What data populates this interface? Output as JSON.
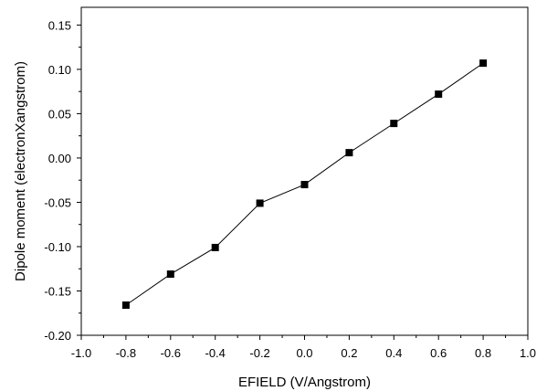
{
  "chart_data": {
    "type": "line",
    "title": "",
    "xlabel": "EFIELD (V/Angstrom)",
    "ylabel": "Dipole moment (electronXangstrom)",
    "xlim": [
      -1.0,
      1.0
    ],
    "ylim": [
      -0.2,
      0.17
    ],
    "x_ticks": [
      -1.0,
      -0.8,
      -0.6,
      -0.4,
      -0.2,
      0.0,
      0.2,
      0.4,
      0.6,
      0.8,
      1.0
    ],
    "x_tick_labels": [
      "-1.0",
      "-0.8",
      "-0.6",
      "-0.4",
      "-0.2",
      "0.0",
      "0.2",
      "0.4",
      "0.6",
      "0.8",
      "1.0"
    ],
    "y_ticks": [
      -0.2,
      -0.15,
      -0.1,
      -0.05,
      0.0,
      0.05,
      0.1,
      0.15
    ],
    "y_tick_labels": [
      "-0.20",
      "-0.15",
      "-0.10",
      "-0.05",
      "0.00",
      "0.05",
      "0.10",
      "0.15"
    ],
    "grid": false,
    "legend": "none",
    "series": [
      {
        "marker": "square",
        "color": "#000000",
        "x": [
          -0.8,
          -0.6,
          -0.4,
          -0.2,
          0.0,
          0.2,
          0.4,
          0.6,
          0.8
        ],
        "y": [
          -0.166,
          -0.131,
          -0.101,
          -0.051,
          -0.03,
          0.006,
          0.039,
          0.072,
          0.107
        ]
      }
    ]
  }
}
